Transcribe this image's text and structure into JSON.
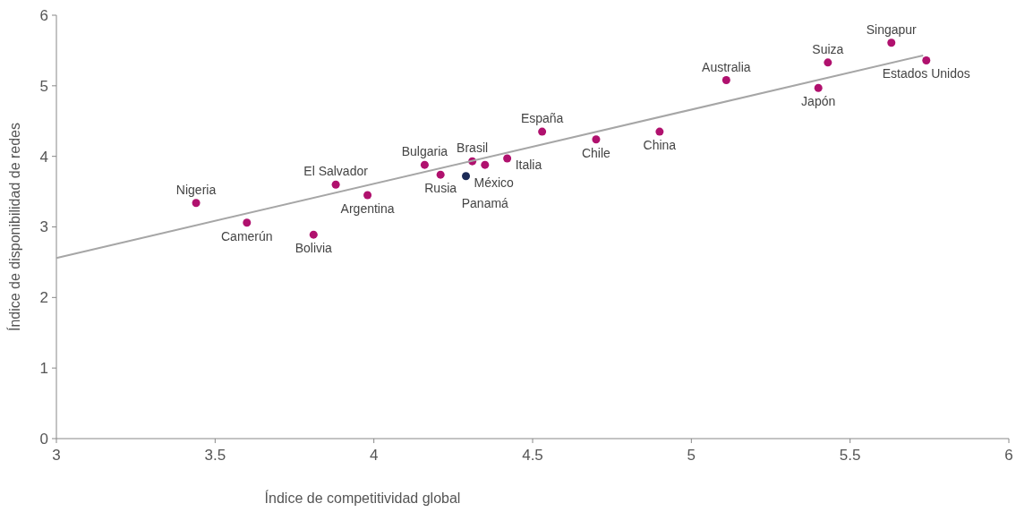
{
  "chart_data": {
    "type": "scatter",
    "xlabel": "Índice de competitividad global",
    "ylabel": "Índice de disponibilidad de redes",
    "xlim": [
      3,
      6
    ],
    "ylim": [
      0,
      6
    ],
    "xticks": [
      3,
      3.5,
      4,
      4.5,
      5,
      5.5,
      6
    ],
    "yticks": [
      0,
      1,
      2,
      3,
      4,
      5,
      6
    ],
    "grid": false,
    "series": [
      {
        "marker": "circle",
        "x": [
          3.44,
          3.6,
          3.81,
          3.88,
          3.98,
          4.16,
          4.21,
          4.29,
          4.31,
          4.35,
          4.42,
          4.53,
          4.7,
          4.9,
          5.11,
          5.4,
          5.43,
          5.63,
          5.74
        ],
        "values": [
          3.34,
          3.06,
          2.89,
          3.6,
          3.45,
          3.88,
          3.74,
          3.72,
          3.93,
          3.88,
          3.97,
          4.35,
          4.24,
          4.35,
          5.08,
          4.97,
          5.33,
          5.61,
          5.36
        ],
        "colors": [
          "#b0116e",
          "#b0116e",
          "#b0116e",
          "#b0116e",
          "#b0116e",
          "#b0116e",
          "#b0116e",
          "#1b2a56",
          "#b0116e",
          "#b0116e",
          "#b0116e",
          "#b0116e",
          "#b0116e",
          "#b0116e",
          "#b0116e",
          "#b0116e",
          "#b0116e",
          "#b0116e",
          "#b0116e"
        ]
      },
      {
        "type": "line",
        "x": [
          3,
          5.73
        ],
        "values": [
          2.56,
          5.43
        ],
        "color": "#a6a6a6",
        "line_style": "solid"
      }
    ],
    "annotations": [
      {
        "text": "Nigeria",
        "x": 3.44,
        "y": 3.34
      },
      {
        "text": "Camerún",
        "x": 3.6,
        "y": 3.06
      },
      {
        "text": "Bolivia",
        "x": 3.81,
        "y": 2.89
      },
      {
        "text": "El Salvador",
        "x": 3.88,
        "y": 3.6
      },
      {
        "text": "Argentina",
        "x": 3.98,
        "y": 3.45
      },
      {
        "text": "Bulgaria",
        "x": 4.16,
        "y": 3.88
      },
      {
        "text": "Rusia",
        "x": 4.21,
        "y": 3.74
      },
      {
        "text": "México",
        "x": 4.29,
        "y": 3.72
      },
      {
        "text": "Brasil",
        "x": 4.31,
        "y": 3.93
      },
      {
        "text": "Panamá",
        "x": 4.35,
        "y": 3.88
      },
      {
        "text": "Italia",
        "x": 4.42,
        "y": 3.97
      },
      {
        "text": "España",
        "x": 4.53,
        "y": 4.35
      },
      {
        "text": "Chile",
        "x": 4.7,
        "y": 4.24
      },
      {
        "text": "China",
        "x": 4.9,
        "y": 4.35
      },
      {
        "text": "Australia",
        "x": 5.11,
        "y": 5.08
      },
      {
        "text": "Japón",
        "x": 5.4,
        "y": 4.97
      },
      {
        "text": "Suiza",
        "x": 5.43,
        "y": 5.33
      },
      {
        "text": "Singapur",
        "x": 5.63,
        "y": 5.61
      },
      {
        "text": "Estados Unidos",
        "x": 5.74,
        "y": 5.36
      }
    ]
  }
}
